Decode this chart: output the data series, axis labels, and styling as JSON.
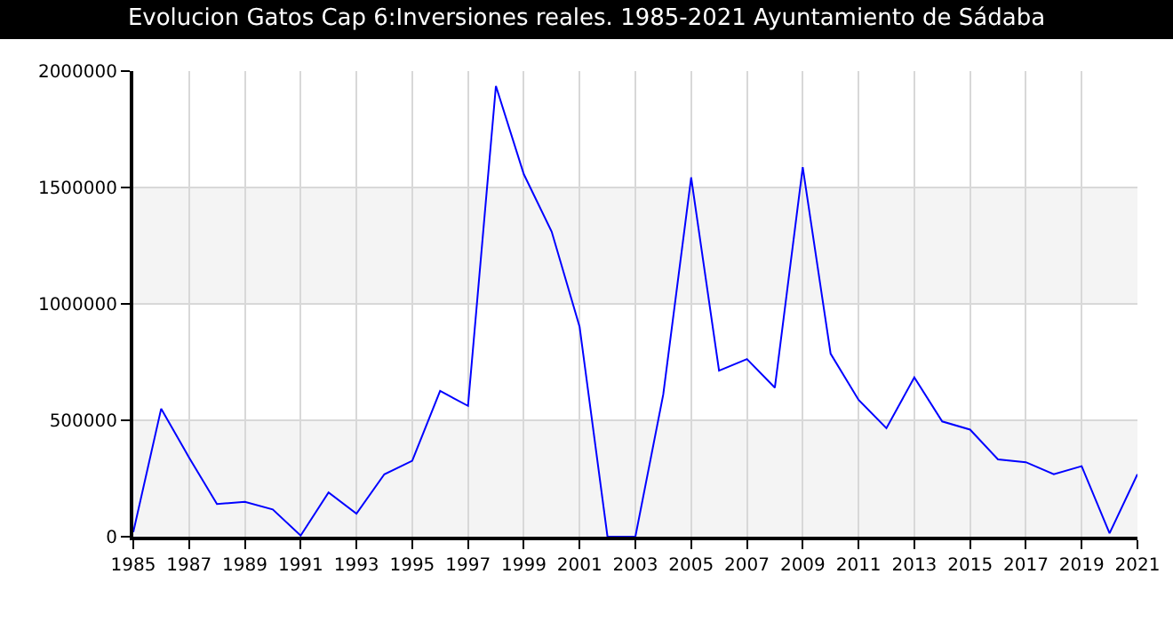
{
  "chart_data": {
    "type": "line",
    "title": "Evolucion Gatos Cap 6:Inversiones reales. 1985-2021 Ayuntamiento de Sádaba",
    "x": [
      1985,
      1986,
      1987,
      1988,
      1989,
      1990,
      1991,
      1992,
      1993,
      1994,
      1995,
      1996,
      1997,
      1998,
      1999,
      2000,
      2001,
      2002,
      2003,
      2004,
      2005,
      2006,
      2007,
      2008,
      2009,
      2010,
      2011,
      2012,
      2013,
      2014,
      2015,
      2016,
      2017,
      2018,
      2019,
      2020,
      2021
    ],
    "series": [
      {
        "color": "#0000ff",
        "values": [
          20000,
          550000,
          340000,
          140000,
          150000,
          117000,
          5000,
          190000,
          99000,
          268000,
          326000,
          626000,
          562000,
          1936000,
          1557000,
          1310000,
          902000,
          0,
          0,
          611000,
          1543000,
          713000,
          763000,
          640000,
          1587000,
          786000,
          588000,
          466000,
          684000,
          495000,
          460000,
          332000,
          320000,
          268000,
          303000,
          15000,
          268000
        ]
      }
    ],
    "xlim": [
      1985,
      2021
    ],
    "xticks": [
      1985,
      1987,
      1989,
      1991,
      1993,
      1995,
      1997,
      1999,
      2001,
      2003,
      2005,
      2007,
      2009,
      2011,
      2013,
      2015,
      2017,
      2019,
      2021
    ],
    "ylim": [
      0,
      2000000
    ],
    "yticks": [
      0,
      500000,
      1000000,
      1500000,
      2000000
    ],
    "bands": [
      {
        "axis": "y",
        "from": 0,
        "to": 500000,
        "color": "#f4f4f4"
      },
      {
        "axis": "y",
        "from": 1000000,
        "to": 1500000,
        "color": "#f4f4f4"
      }
    ],
    "grid": true,
    "marker": "none",
    "line_style": "solid"
  }
}
